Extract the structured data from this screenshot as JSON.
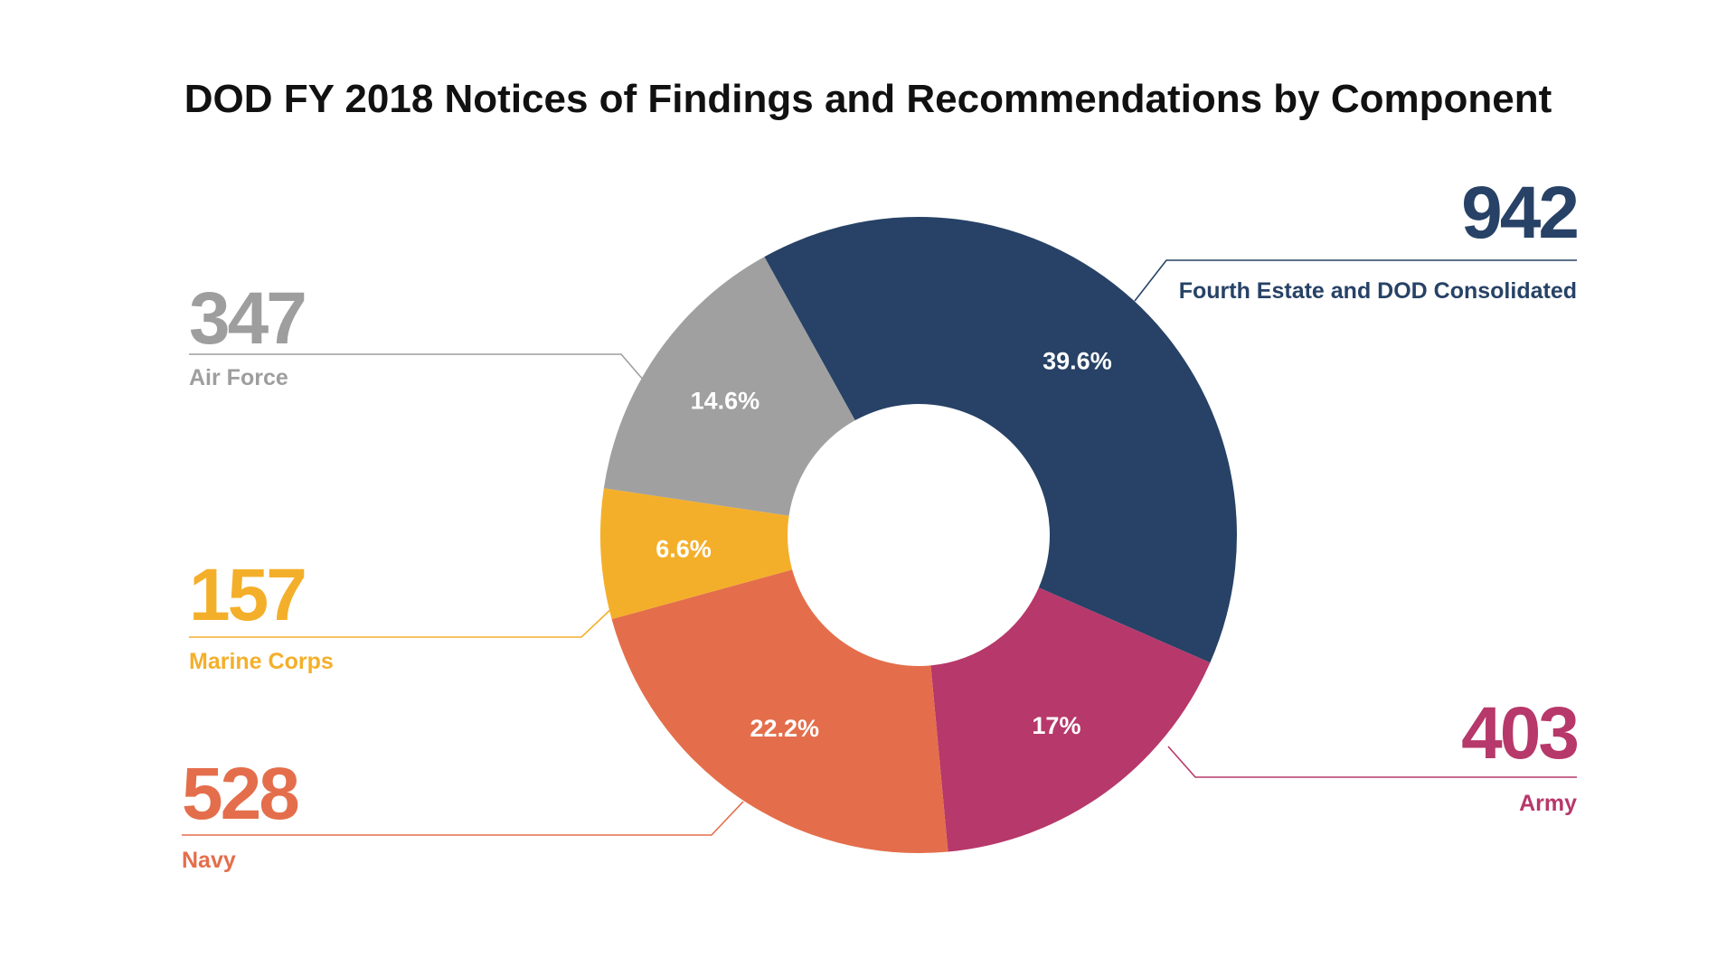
{
  "chart_data": {
    "type": "pie",
    "title": "DOD FY 2018 Notices of Findings and Recommendations by Component",
    "donut": true,
    "slices": [
      {
        "label": "Fourth Estate and DOD Consolidated",
        "value": 942,
        "percent_label": "39.6%",
        "color": "#274266"
      },
      {
        "label": "Army",
        "value": 403,
        "percent_label": "17%",
        "color": "#B7386A"
      },
      {
        "label": "Navy",
        "value": 528,
        "percent_label": "22.2%",
        "color": "#E46E4B"
      },
      {
        "label": "Marine Corps",
        "value": 157,
        "percent_label": "6.6%",
        "color": "#F4AF2A"
      },
      {
        "label": "Air Force",
        "value": 347,
        "percent_label": "14.6%",
        "color": "#A0A0A0"
      }
    ],
    "label_color_air_force": "#9E9E9E"
  }
}
